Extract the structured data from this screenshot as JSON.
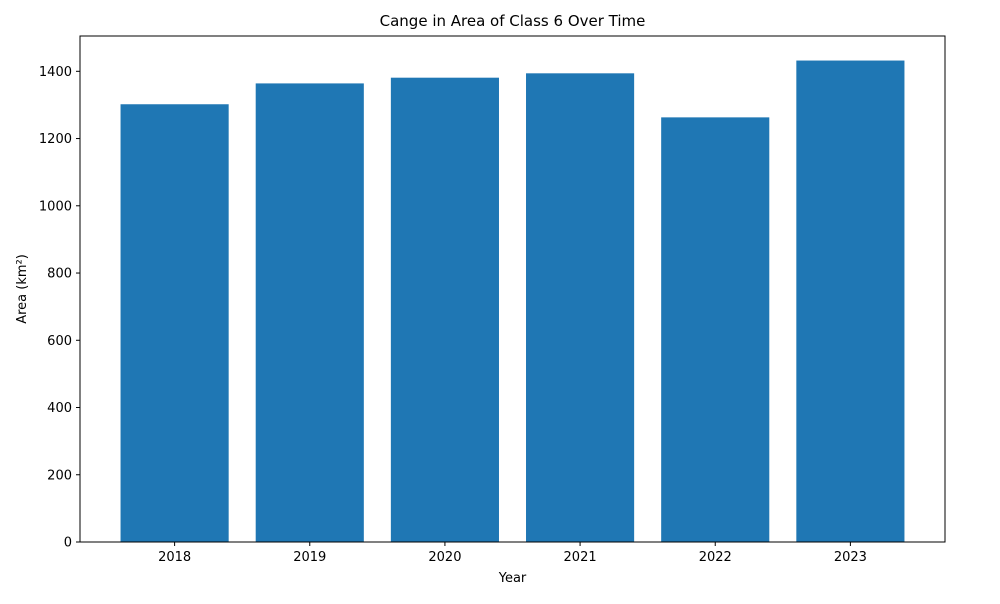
{
  "chart_data": {
    "type": "bar",
    "title": "Cange in Area of Class 6 Over Time",
    "xlabel": "Year",
    "ylabel": "Area (km²)",
    "categories": [
      "2018",
      "2019",
      "2020",
      "2021",
      "2022",
      "2023"
    ],
    "values": [
      1302,
      1364,
      1381,
      1394,
      1263,
      1432
    ],
    "ylim": [
      0,
      1505
    ],
    "yticks": [
      0,
      200,
      400,
      600,
      800,
      1000,
      1200,
      1400
    ],
    "grid": false,
    "legend": "none",
    "bar_color": "#1f77b4"
  }
}
